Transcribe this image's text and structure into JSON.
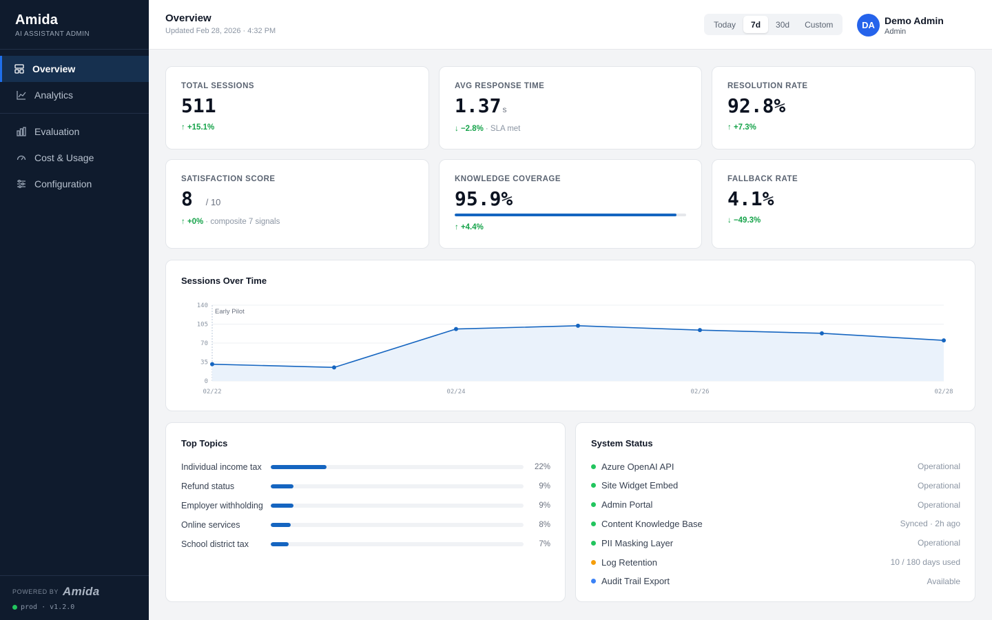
{
  "sidebar": {
    "brand": "Amida",
    "subtitle": "AI ASSISTANT ADMIN",
    "items": [
      {
        "label": "Overview",
        "icon": "layout-grid-icon"
      },
      {
        "label": "Analytics",
        "icon": "line-chart-icon"
      },
      {
        "label": "Evaluation",
        "icon": "bar-columns-icon"
      },
      {
        "label": "Cost & Usage",
        "icon": "gauge-icon"
      },
      {
        "label": "Configuration",
        "icon": "sliders-icon"
      }
    ],
    "footer": {
      "powered_by": "POWERED BY",
      "logo": "Amida",
      "env": "prod · v1.2.0"
    }
  },
  "header": {
    "title": "Overview",
    "updated": "Updated Feb 28, 2026 · 4:32 PM",
    "ranges": [
      "Today",
      "7d",
      "30d",
      "Custom"
    ],
    "active_range": "7d",
    "user": {
      "initials": "DA",
      "name": "Demo Admin",
      "role": "Admin"
    }
  },
  "kpis": {
    "total_sessions": {
      "label": "TOTAL SESSIONS",
      "value": "511",
      "delta": "↑ +15.1%"
    },
    "avg_response": {
      "label": "AVG RESPONSE TIME",
      "value": "1.37",
      "unit": "s",
      "delta": "↓ −2.8%",
      "note": "· SLA met"
    },
    "resolution_rate": {
      "label": "RESOLUTION RATE",
      "value": "92.8%",
      "delta": "↑ +7.3%"
    },
    "satisfaction": {
      "label": "SATISFACTION SCORE",
      "value": "8",
      "suffix": "/ 10",
      "delta": "↑ +0%",
      "note": "· composite 7 signals"
    },
    "knowledge_coverage": {
      "label": "KNOWLEDGE COVERAGE",
      "value": "95.9%",
      "fill": 0.959,
      "delta": "↑ +4.4%"
    },
    "fallback_rate": {
      "label": "FALLBACK RATE",
      "value": "4.1%",
      "delta": "↓ −49.3%"
    }
  },
  "sessions_chart": {
    "title": "Sessions Over Time",
    "annotation": "Early Pilot"
  },
  "chart_data": {
    "type": "area",
    "title": "Sessions Over Time",
    "x": [
      "02/22",
      "02/23",
      "02/24",
      "02/25",
      "02/26",
      "02/27",
      "02/28"
    ],
    "x_tick_labels": [
      "02/22",
      "02/24",
      "02/26",
      "02/28"
    ],
    "series": [
      {
        "values": [
          31,
          25,
          96,
          102,
          94,
          88,
          75
        ]
      }
    ],
    "ylim": [
      0,
      140
    ],
    "y_ticks": [
      0,
      35,
      70,
      105,
      140
    ],
    "annotations": [
      {
        "text": "Early Pilot",
        "x": "02/22"
      }
    ],
    "grid": true,
    "colors": {
      "line": "#1565c0",
      "fill": "#eaf2fb"
    }
  },
  "top_topics": {
    "title": "Top Topics",
    "items": [
      {
        "name": "Individual income tax",
        "pct": "22%",
        "value": 0.22
      },
      {
        "name": "Refund status",
        "pct": "9%",
        "value": 0.09
      },
      {
        "name": "Employer withholding",
        "pct": "9%",
        "value": 0.09
      },
      {
        "name": "Online services",
        "pct": "8%",
        "value": 0.08
      },
      {
        "name": "School district tax",
        "pct": "7%",
        "value": 0.07
      }
    ]
  },
  "system_status": {
    "title": "System Status",
    "items": [
      {
        "name": "Azure OpenAI API",
        "status": "Operational",
        "color": "#22c55e"
      },
      {
        "name": "Site Widget Embed",
        "status": "Operational",
        "color": "#22c55e"
      },
      {
        "name": "Admin Portal",
        "status": "Operational",
        "color": "#22c55e"
      },
      {
        "name": "Content Knowledge Base",
        "status": "Synced · 2h ago",
        "color": "#22c55e"
      },
      {
        "name": "PII Masking Layer",
        "status": "Operational",
        "color": "#22c55e"
      },
      {
        "name": "Log Retention",
        "status": "10 / 180 days used",
        "color": "#f59e0b"
      },
      {
        "name": "Audit Trail Export",
        "status": "Available",
        "color": "#3b82f6"
      }
    ]
  }
}
